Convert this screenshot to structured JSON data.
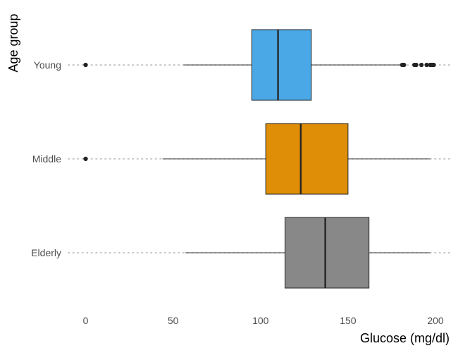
{
  "chart_data": {
    "type": "box",
    "orientation": "horizontal",
    "title": "",
    "xlabel": "Glucose (mg/dl)",
    "ylabel": "Age group",
    "xlim": [
      -10,
      207
    ],
    "x_ticks": [
      0,
      50,
      100,
      150,
      200
    ],
    "x_tick_labels": [
      "0",
      "50",
      "100",
      "150",
      "200"
    ],
    "grid": "horizontal dotted gridlines at each category",
    "legend": "none",
    "categories": [
      "Young",
      "Middle",
      "Elderly"
    ],
    "boxes": [
      {
        "category": "Young",
        "color": "#4ba8e6",
        "whisker_low": 56,
        "q1": 95,
        "median": 110,
        "q3": 129,
        "whisker_high": 180,
        "outliers": [
          0,
          181,
          182,
          188,
          189,
          192,
          195,
          197,
          198,
          199
        ]
      },
      {
        "category": "Middle",
        "color": "#df8e07",
        "whisker_low": 44,
        "q1": 103,
        "median": 123,
        "q3": 150,
        "whisker_high": 197,
        "outliers": [
          0
        ]
      },
      {
        "category": "Elderly",
        "color": "#888888",
        "whisker_low": 57,
        "q1": 114,
        "median": 137,
        "q3": 162,
        "whisker_high": 197,
        "outliers": []
      }
    ]
  }
}
